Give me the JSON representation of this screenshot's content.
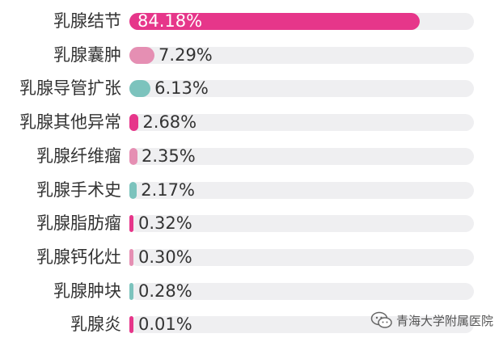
{
  "chart_data": {
    "type": "bar",
    "orientation": "horizontal",
    "categories": [
      "乳腺结节",
      "乳腺囊肿",
      "乳腺导管扩张",
      "乳腺其他异常",
      "乳腺纤维瘤",
      "乳腺手术史",
      "乳腺脂肪瘤",
      "乳腺钙化灶",
      "乳腺肿块",
      "乳腺炎"
    ],
    "values": [
      84.18,
      7.29,
      6.13,
      2.68,
      2.35,
      2.17,
      0.32,
      0.3,
      0.28,
      0.01
    ],
    "value_labels": [
      "84.18%",
      "7.29%",
      "6.13%",
      "2.68%",
      "2.35%",
      "2.17%",
      "0.32%",
      "0.30%",
      "0.28%",
      "0.01%"
    ],
    "colors": [
      "#e6368a",
      "#e58fb3",
      "#7cc3bd",
      "#e6368a",
      "#e58fb3",
      "#7cc3bd",
      "#e6368a",
      "#e58fb3",
      "#7cc3bd",
      "#e6368a"
    ],
    "track_color": "#efeff1",
    "xlim": [
      0,
      100
    ],
    "grid": false,
    "legend": "none"
  },
  "watermark": {
    "text": "青海大学附属医院",
    "icon": "wechat-icon"
  }
}
